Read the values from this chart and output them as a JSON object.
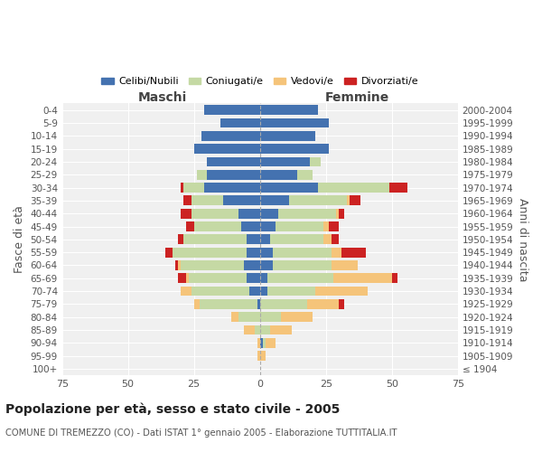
{
  "age_groups": [
    "100+",
    "95-99",
    "90-94",
    "85-89",
    "80-84",
    "75-79",
    "70-74",
    "65-69",
    "60-64",
    "55-59",
    "50-54",
    "45-49",
    "40-44",
    "35-39",
    "30-34",
    "25-29",
    "20-24",
    "15-19",
    "10-14",
    "5-9",
    "0-4"
  ],
  "birth_years": [
    "≤ 1904",
    "1905-1909",
    "1910-1914",
    "1915-1919",
    "1920-1924",
    "1925-1929",
    "1930-1934",
    "1935-1939",
    "1940-1944",
    "1945-1949",
    "1950-1954",
    "1955-1959",
    "1960-1964",
    "1965-1969",
    "1970-1974",
    "1975-1979",
    "1980-1984",
    "1985-1989",
    "1990-1994",
    "1995-1999",
    "2000-2004"
  ],
  "colors": {
    "celibi": "#4472b0",
    "coniugati": "#c5d9a4",
    "vedovi": "#f5c47a",
    "divorziati": "#cc2222"
  },
  "maschi": {
    "celibi": [
      0,
      0,
      0,
      0,
      0,
      1,
      4,
      5,
      6,
      5,
      5,
      7,
      8,
      14,
      21,
      20,
      20,
      25,
      22,
      15,
      21
    ],
    "coniugati": [
      0,
      0,
      0,
      2,
      8,
      22,
      22,
      22,
      24,
      28,
      24,
      18,
      18,
      12,
      8,
      4,
      0,
      0,
      0,
      0,
      0
    ],
    "vedovi": [
      0,
      1,
      1,
      4,
      3,
      2,
      4,
      1,
      1,
      0,
      0,
      0,
      0,
      0,
      0,
      0,
      0,
      0,
      0,
      0,
      0
    ],
    "divorziati": [
      0,
      0,
      0,
      0,
      0,
      0,
      0,
      3,
      1,
      3,
      2,
      3,
      4,
      3,
      1,
      0,
      0,
      0,
      0,
      0,
      0
    ]
  },
  "femmine": {
    "celibi": [
      0,
      0,
      1,
      0,
      0,
      0,
      3,
      3,
      5,
      5,
      4,
      6,
      7,
      11,
      22,
      14,
      19,
      26,
      21,
      26,
      22
    ],
    "coniugati": [
      0,
      0,
      1,
      4,
      8,
      18,
      18,
      25,
      22,
      22,
      20,
      18,
      22,
      22,
      27,
      6,
      4,
      0,
      0,
      0,
      0
    ],
    "vedovi": [
      0,
      2,
      4,
      8,
      12,
      12,
      20,
      22,
      10,
      4,
      3,
      2,
      1,
      1,
      0,
      0,
      0,
      0,
      0,
      0,
      0
    ],
    "divorziati": [
      0,
      0,
      0,
      0,
      0,
      2,
      0,
      2,
      0,
      9,
      3,
      4,
      2,
      4,
      7,
      0,
      0,
      0,
      0,
      0,
      0
    ]
  },
  "xlim": 75,
  "title": "Popolazione per età, sesso e stato civile - 2005",
  "subtitle": "COMUNE DI TREMEZZO (CO) - Dati ISTAT 1° gennaio 2005 - Elaborazione TUTTITALIA.IT",
  "xlabel_left": "Maschi",
  "xlabel_right": "Femmine",
  "ylabel_left": "Fasce di età",
  "ylabel_right": "Anni di nascita",
  "legend_labels": [
    "Celibi/Nubili",
    "Coniugati/e",
    "Vedovi/e",
    "Divorziati/e"
  ],
  "bg_color": "#ffffff",
  "plot_bg_color": "#f0f0f0"
}
